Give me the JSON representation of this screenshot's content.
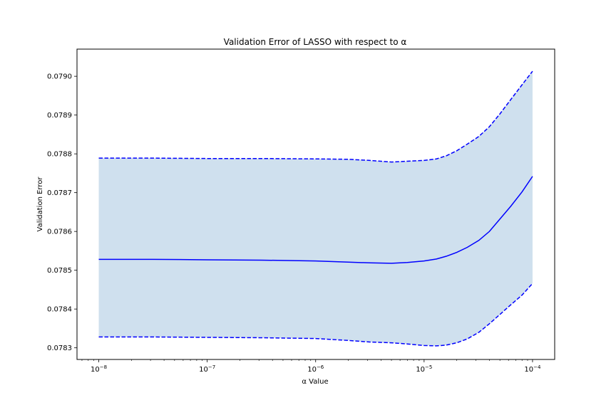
{
  "chart_data": {
    "type": "line",
    "title": "Validation Error of LASSO with respect to α",
    "xlabel": "α Value",
    "ylabel": "Validation Error",
    "x_scale": "log",
    "xlim": [
      6.3e-09,
      0.00016
    ],
    "ylim": [
      0.07827,
      0.07907
    ],
    "grid": false,
    "x_ticks": [
      {
        "value": 1e-08,
        "base": "10",
        "exp": "−8"
      },
      {
        "value": 1e-07,
        "base": "10",
        "exp": "−7"
      },
      {
        "value": 1e-06,
        "base": "10",
        "exp": "−6"
      },
      {
        "value": 1e-05,
        "base": "10",
        "exp": "−5"
      },
      {
        "value": 0.0001,
        "base": "10",
        "exp": "−4"
      }
    ],
    "y_ticks": [
      {
        "value": 0.0783,
        "label": "0.0783"
      },
      {
        "value": 0.0784,
        "label": "0.0784"
      },
      {
        "value": 0.0785,
        "label": "0.0785"
      },
      {
        "value": 0.0786,
        "label": "0.0786"
      },
      {
        "value": 0.0787,
        "label": "0.0787"
      },
      {
        "value": 0.0788,
        "label": "0.0788"
      },
      {
        "value": 0.0789,
        "label": "0.0789"
      },
      {
        "value": 0.079,
        "label": "0.0790"
      }
    ],
    "x": [
      1e-08,
      3.16e-08,
      1e-07,
      3.16e-07,
      1e-06,
      2e-06,
      3.16e-06,
      5e-06,
      7e-06,
      1e-05,
      1.3e-05,
      1.6e-05,
      2e-05,
      2.5e-05,
      3.2e-05,
      4e-05,
      5e-05,
      6.3e-05,
      8e-05,
      0.0001
    ],
    "series": [
      {
        "role": "mean",
        "style": "solid",
        "color": "#0000ff",
        "values": [
          0.078528,
          0.078528,
          0.078527,
          0.078526,
          0.078524,
          0.078521,
          0.078519,
          0.078518,
          0.07852,
          0.078524,
          0.078529,
          0.078536,
          0.078546,
          0.078559,
          0.078577,
          0.0786,
          0.078632,
          0.078665,
          0.078702,
          0.078742
        ]
      },
      {
        "role": "upper",
        "style": "dashed",
        "color": "#0000ff",
        "values": [
          0.078789,
          0.078789,
          0.078788,
          0.078788,
          0.078787,
          0.078786,
          0.078783,
          0.078779,
          0.078781,
          0.078783,
          0.078787,
          0.078795,
          0.078808,
          0.078825,
          0.078845,
          0.07887,
          0.078903,
          0.07894,
          0.078978,
          0.079013
        ]
      },
      {
        "role": "lower",
        "style": "dashed",
        "color": "#0000ff",
        "values": [
          0.078328,
          0.078328,
          0.078327,
          0.078326,
          0.078324,
          0.078319,
          0.078315,
          0.078313,
          0.07831,
          0.078306,
          0.078305,
          0.078307,
          0.078313,
          0.078323,
          0.07834,
          0.078362,
          0.078386,
          0.078411,
          0.078436,
          0.078466
        ]
      }
    ],
    "band_fill": "#cfe0ee"
  }
}
